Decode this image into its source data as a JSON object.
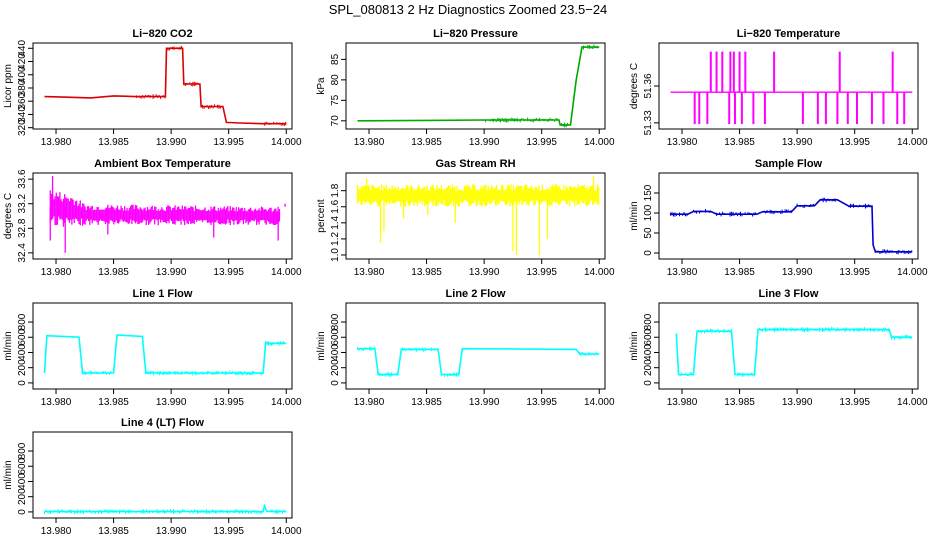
{
  "main_title": "SPL_080813  2 Hz Diagnostics Zoomed 23.5−24",
  "chart_data": [
    {
      "type": "line",
      "title": "Li−820 CO2",
      "ylabel": "Licor ppm",
      "color": "#dd0000",
      "xlim": [
        13.978,
        14.0005
      ],
      "ylim": [
        318,
        448
      ],
      "x_ticks": [
        "13.980",
        "13.985",
        "13.990",
        "13.995",
        "14.000"
      ],
      "x_tick_values": [
        13.98,
        13.985,
        13.99,
        13.995,
        14.0
      ],
      "y_ticks": [
        "320",
        "340",
        "360",
        "380",
        "400",
        "420",
        "440"
      ],
      "y_tick_values": [
        320,
        340,
        360,
        380,
        400,
        420,
        440
      ],
      "series": [
        {
          "x": [
            13.979,
            13.981,
            13.983,
            13.985,
            13.987,
            13.9895,
            13.9896,
            13.991,
            13.9911,
            13.9925,
            13.9926,
            13.9945,
            13.9948,
            13.996,
            13.998,
            14.0
          ],
          "y": [
            367,
            366,
            365,
            368,
            367,
            367,
            440,
            440,
            386,
            386,
            352,
            352,
            328,
            327,
            326,
            326
          ]
        }
      ]
    },
    {
      "type": "line",
      "title": "Li−820 Pressure",
      "ylabel": "kPa",
      "color": "#00aa00",
      "xlim": [
        13.978,
        14.0005
      ],
      "ylim": [
        68,
        89
      ],
      "x_ticks": [
        "13.980",
        "13.985",
        "13.990",
        "13.995",
        "14.000"
      ],
      "x_tick_values": [
        13.98,
        13.985,
        13.99,
        13.995,
        14.0
      ],
      "y_ticks": [
        "70",
        "75",
        "80",
        "85"
      ],
      "y_tick_values": [
        70,
        75,
        80,
        85
      ],
      "series": [
        {
          "x": [
            13.979,
            13.985,
            13.99,
            13.9965,
            13.9966,
            13.9975,
            13.998,
            13.9985,
            14.0
          ],
          "y": [
            70,
            70.1,
            70.2,
            70.2,
            69,
            69,
            80,
            88,
            88
          ]
        }
      ]
    },
    {
      "type": "line",
      "title": "Li−820 Temperature",
      "ylabel": "degrees C",
      "color": "#ff00ff",
      "xlim": [
        13.978,
        14.0005
      ],
      "ylim": [
        51.325,
        51.395
      ],
      "x_ticks": [
        "13.980",
        "13.985",
        "13.990",
        "13.995",
        "14.000"
      ],
      "x_tick_values": [
        13.98,
        13.985,
        13.99,
        13.995,
        14.0
      ],
      "y_ticks": [
        "51.33",
        "51.36"
      ],
      "y_tick_values": [
        51.33,
        51.36
      ],
      "baseline": 51.355,
      "high": 51.388,
      "low": 51.329,
      "spikes_up": [
        13.9825,
        13.983,
        13.9835,
        13.9842,
        13.9845,
        13.985,
        13.9855,
        13.988,
        13.9937,
        13.9983
      ],
      "spikes_down": [
        13.9811,
        13.9815,
        13.9822,
        13.9841,
        13.9846,
        13.9852,
        13.9862,
        13.9872,
        13.9905,
        13.9918,
        13.9925,
        13.9935,
        13.9944,
        13.9952,
        13.9965,
        13.9975,
        13.9987,
        13.9993
      ]
    },
    {
      "type": "line",
      "title": "Ambient Box Temperature",
      "ylabel": "degrees C",
      "color": "#ff00ff",
      "xlim": [
        13.978,
        14.0005
      ],
      "ylim": [
        32.3,
        33.7
      ],
      "x_ticks": [
        "13.980",
        "13.985",
        "13.990",
        "13.995",
        "14.000"
      ],
      "x_tick_values": [
        13.98,
        13.985,
        13.99,
        13.995,
        14.0
      ],
      "y_ticks": [
        "32.4",
        "32.8",
        "33.2",
        "33.6"
      ],
      "y_tick_values": [
        32.4,
        32.8,
        33.2,
        33.6
      ],
      "band": [
        {
          "x": 13.9795,
          "lo": 32.85,
          "hi": 33.45
        },
        {
          "x": 13.9815,
          "lo": 32.8,
          "hi": 33.35
        },
        {
          "x": 13.9825,
          "lo": 32.85,
          "hi": 33.2
        },
        {
          "x": 13.9995,
          "lo": 32.85,
          "hi": 33.15
        }
      ],
      "spikes": [
        [
          13.9797,
          33.65
        ],
        [
          13.9808,
          32.4
        ],
        [
          13.9795,
          32.6
        ],
        [
          13.9845,
          32.7
        ],
        [
          13.9937,
          32.65
        ],
        [
          13.9993,
          32.6
        ],
        [
          13.9999,
          33.2
        ]
      ]
    },
    {
      "type": "line",
      "title": "Gas Stream RH",
      "ylabel": "percent",
      "color": "#ffff00",
      "xlim": [
        13.978,
        14.0005
      ],
      "ylim": [
        0.95,
        2.02
      ],
      "x_ticks": [
        "13.980",
        "13.985",
        "13.990",
        "13.995",
        "14.000"
      ],
      "x_tick_values": [
        13.98,
        13.985,
        13.99,
        13.995,
        14.0
      ],
      "y_ticks": [
        "1.0",
        "1.2",
        "1.4",
        "1.6",
        "1.8"
      ],
      "y_tick_values": [
        1.0,
        1.2,
        1.4,
        1.6,
        1.8
      ],
      "band": [
        {
          "x": 13.979,
          "lo": 1.6,
          "hi": 1.88
        },
        {
          "x": 14.0,
          "lo": 1.6,
          "hi": 1.88
        }
      ],
      "spikes": [
        [
          13.9798,
          1.95
        ],
        [
          13.981,
          1.15
        ],
        [
          13.9813,
          1.3
        ],
        [
          13.983,
          1.45
        ],
        [
          13.9851,
          1.5
        ],
        [
          13.9875,
          1.4
        ],
        [
          13.9898,
          1.6
        ],
        [
          13.9925,
          1.05
        ],
        [
          13.9928,
          1.0
        ],
        [
          13.9948,
          1.0
        ],
        [
          13.9955,
          1.2
        ],
        [
          13.9995,
          1.98
        ]
      ]
    },
    {
      "type": "line",
      "title": "Sample Flow",
      "ylabel": "ml/min",
      "color": "#0000cc",
      "xlim": [
        13.978,
        14.0005
      ],
      "ylim": [
        -15,
        200
      ],
      "x_ticks": [
        "13.980",
        "13.985",
        "13.990",
        "13.995",
        "14.000"
      ],
      "x_tick_values": [
        13.98,
        13.985,
        13.99,
        13.995,
        14.0
      ],
      "y_ticks": [
        "0",
        "50",
        "100",
        "150"
      ],
      "y_tick_values": [
        0,
        50,
        100,
        150
      ],
      "series": [
        {
          "x": [
            13.979,
            13.9805,
            13.981,
            13.9825,
            13.983,
            13.9865,
            13.987,
            13.9895,
            13.99,
            13.9915,
            13.992,
            13.9935,
            13.9945,
            13.9965,
            13.9966,
            13.9968,
            13.998,
            14.0
          ],
          "y": [
            97,
            97,
            104,
            104,
            97,
            97,
            103,
            103,
            118,
            118,
            133,
            133,
            117,
            117,
            20,
            3,
            3,
            3
          ]
        }
      ]
    },
    {
      "type": "line",
      "title": "Line 1 Flow",
      "ylabel": "ml/min",
      "color": "#00ffff",
      "xlim": [
        13.978,
        14.0005
      ],
      "ylim": [
        -80,
        1050
      ],
      "x_ticks": [
        "13.980",
        "13.985",
        "13.990",
        "13.995",
        "14.000"
      ],
      "x_tick_values": [
        13.98,
        13.985,
        13.99,
        13.995,
        14.0
      ],
      "y_ticks": [
        "0",
        "200",
        "400",
        "600",
        "800"
      ],
      "y_tick_values": [
        0,
        200,
        400,
        600,
        800
      ],
      "series": [
        {
          "x": [
            13.979,
            13.9792,
            13.982,
            13.9823,
            13.985,
            13.9853,
            13.9875,
            13.9878,
            13.998,
            13.9982,
            14.0
          ],
          "y": [
            130,
            620,
            600,
            130,
            130,
            630,
            610,
            130,
            130,
            520,
            520
          ]
        }
      ]
    },
    {
      "type": "line",
      "title": "Line 2 Flow",
      "ylabel": "ml/min",
      "color": "#00ffff",
      "xlim": [
        13.978,
        14.0005
      ],
      "ylim": [
        -80,
        1050
      ],
      "x_ticks": [
        "13.980",
        "13.985",
        "13.990",
        "13.995",
        "14.000"
      ],
      "x_tick_values": [
        13.98,
        13.985,
        13.99,
        13.995,
        14.0
      ],
      "y_ticks": [
        "0",
        "200",
        "400",
        "600",
        "800"
      ],
      "y_tick_values": [
        0,
        200,
        400,
        600,
        800
      ],
      "series": [
        {
          "x": [
            13.979,
            13.9805,
            13.9808,
            13.9825,
            13.9828,
            13.986,
            13.9863,
            13.9878,
            13.9881,
            13.998,
            13.9983,
            14.0
          ],
          "y": [
            450,
            450,
            110,
            110,
            440,
            440,
            110,
            110,
            450,
            440,
            380,
            380
          ]
        }
      ]
    },
    {
      "type": "line",
      "title": "Line 3 Flow",
      "ylabel": "ml/min",
      "color": "#00ffff",
      "xlim": [
        13.978,
        14.0005
      ],
      "ylim": [
        -80,
        1050
      ],
      "x_ticks": [
        "13.980",
        "13.985",
        "13.990",
        "13.995",
        "14.000"
      ],
      "x_tick_values": [
        13.98,
        13.985,
        13.99,
        13.995,
        14.0
      ],
      "y_ticks": [
        "0",
        "200",
        "400",
        "600",
        "800"
      ],
      "y_tick_values": [
        0,
        200,
        400,
        600,
        800
      ],
      "series": [
        {
          "x": [
            13.9795,
            13.9797,
            13.9798,
            13.981,
            13.9813,
            13.9843,
            13.9846,
            13.9863,
            13.9866,
            13.998,
            13.9982,
            14.0
          ],
          "y": [
            650,
            110,
            110,
            110,
            680,
            680,
            110,
            110,
            700,
            700,
            600,
            600
          ]
        }
      ]
    },
    {
      "type": "line",
      "title": "Line 4 (LT) Flow",
      "ylabel": "ml/min",
      "color": "#00ffff",
      "xlim": [
        13.978,
        14.0005
      ],
      "ylim": [
        -80,
        1050
      ],
      "x_ticks": [
        "13.980",
        "13.985",
        "13.990",
        "13.995",
        "14.000"
      ],
      "x_tick_values": [
        13.98,
        13.985,
        13.99,
        13.995,
        14.0
      ],
      "y_ticks": [
        "0",
        "200",
        "400",
        "600",
        "800"
      ],
      "y_tick_values": [
        0,
        200,
        400,
        600,
        800
      ],
      "series": [
        {
          "x": [
            13.979,
            13.998,
            13.9981,
            13.9983,
            13.9985,
            14.0
          ],
          "y": [
            5,
            5,
            80,
            10,
            5,
            5
          ]
        }
      ]
    }
  ]
}
